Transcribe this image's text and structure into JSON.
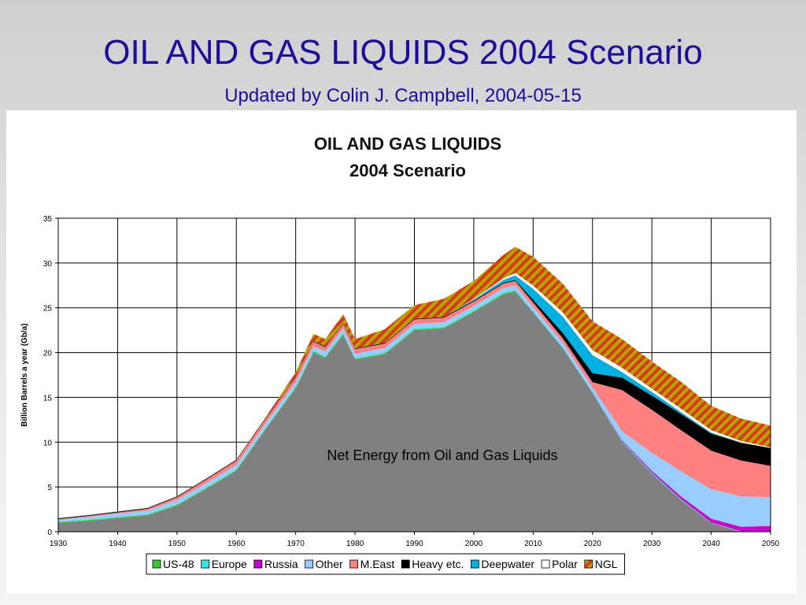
{
  "slide": {
    "title": "OIL AND GAS LIQUIDS 2004 Scenario",
    "subtitle": "Updated by Colin J. Campbell, 2004-05-15"
  },
  "chart_data": {
    "type": "area",
    "stacked": true,
    "title_lines": [
      "OIL AND GAS LIQUIDS",
      "2004 Scenario"
    ],
    "xlabel": "",
    "ylabel": "Billion Barrels a year (Gb/a)",
    "xlim": [
      1930,
      2050
    ],
    "ylim": [
      0,
      35
    ],
    "x_ticks": [
      "1930",
      "1940",
      "1950",
      "1960",
      "1970",
      "1980",
      "1990",
      "2000",
      "2010",
      "2020",
      "2030",
      "2040",
      "2050"
    ],
    "y_ticks": [
      "0",
      "5",
      "10",
      "15",
      "20",
      "25",
      "30",
      "35"
    ],
    "grid": true,
    "legend_position": "bottom",
    "annotation": "Net Energy from Oil and Gas Liquids",
    "x": [
      1930,
      1935,
      1940,
      1945,
      1950,
      1955,
      1960,
      1965,
      1970,
      1973,
      1975,
      1978,
      1980,
      1985,
      1990,
      1995,
      2000,
      2005,
      2007,
      2010,
      2015,
      2020,
      2025,
      2030,
      2035,
      2040,
      2045,
      2050
    ],
    "series": [
      {
        "name": "Net Energy",
        "color": "#808080",
        "pattern": "solid",
        "values": [
          1.0,
          1.2,
          1.5,
          1.8,
          2.9,
          4.8,
          6.8,
          11.5,
          16.0,
          20.0,
          19.4,
          22.0,
          19.2,
          19.8,
          22.5,
          22.7,
          24.5,
          26.5,
          26.8,
          24.5,
          20.5,
          15.5,
          10.0,
          6.5,
          3.5,
          1.0,
          0.0,
          0.0
        ]
      },
      {
        "name": "US-48",
        "color": "#33cc33",
        "pattern": "solid",
        "values": [
          0.1,
          0.1,
          0.1,
          0.1,
          0.1,
          0.1,
          0.1,
          0.1,
          0.1,
          0.1,
          0.1,
          0.1,
          0.1,
          0.1,
          0.1,
          0.1,
          0.1,
          0.1,
          0.1,
          0,
          0,
          0,
          0,
          0,
          0,
          0,
          0,
          0
        ]
      },
      {
        "name": "Europe",
        "color": "#33e6e6",
        "pattern": "solid",
        "values": [
          0.05,
          0.05,
          0.05,
          0.05,
          0.05,
          0.05,
          0.05,
          0.05,
          0.1,
          0.1,
          0.1,
          0.1,
          0.1,
          0.1,
          0.1,
          0.1,
          0.1,
          0.1,
          0.1,
          0.1,
          0.1,
          0.1,
          0.1,
          0.1,
          0.1,
          0.05,
          0.05,
          0.05
        ]
      },
      {
        "name": "Russia",
        "color": "#cc00cc",
        "pattern": "solid",
        "values": [
          0,
          0,
          0,
          0,
          0,
          0,
          0,
          0,
          0,
          0,
          0,
          0,
          0,
          0,
          0,
          0,
          0,
          0,
          0,
          0,
          0,
          0,
          0.1,
          0.2,
          0.3,
          0.4,
          0.5,
          0.6
        ]
      },
      {
        "name": "Other",
        "color": "#99ccff",
        "pattern": "solid",
        "values": [
          0.2,
          0.3,
          0.4,
          0.4,
          0.5,
          0.5,
          0.5,
          0.5,
          0.5,
          0.5,
          0.5,
          0.5,
          0.5,
          0.5,
          0.5,
          0.5,
          0.5,
          0.5,
          0.5,
          0.5,
          0.5,
          0.5,
          1.0,
          2.0,
          2.8,
          3.3,
          3.4,
          3.2
        ]
      },
      {
        "name": "M.East",
        "color": "#ff8080",
        "pattern": "solid",
        "values": [
          0.05,
          0.1,
          0.1,
          0.2,
          0.3,
          0.4,
          0.5,
          0.5,
          0.5,
          0.5,
          0.5,
          0.5,
          0.5,
          0.5,
          0.5,
          0.5,
          0.5,
          0.5,
          0.5,
          0.5,
          0.5,
          0.6,
          4.6,
          4.8,
          4.6,
          4.3,
          4.0,
          3.5
        ]
      },
      {
        "name": "Heavy etc.",
        "color": "#000000",
        "pattern": "solid",
        "values": [
          0.1,
          0.1,
          0.1,
          0.1,
          0.1,
          0.1,
          0.1,
          0.1,
          0.1,
          0.1,
          0.1,
          0.1,
          0.1,
          0.1,
          0.1,
          0.1,
          0.1,
          0.1,
          0.1,
          0.3,
          0.6,
          1.0,
          1.4,
          1.6,
          1.8,
          1.9,
          2.0,
          2.0
        ]
      },
      {
        "name": "Deepwater",
        "color": "#00b0e0",
        "pattern": "solid",
        "values": [
          0,
          0,
          0,
          0,
          0,
          0,
          0,
          0,
          0,
          0,
          0,
          0,
          0,
          0,
          0,
          0,
          0.1,
          0.3,
          0.5,
          1.2,
          1.8,
          2.0,
          0.6,
          0.4,
          0.2,
          0.1,
          0,
          0
        ]
      },
      {
        "name": "Polar",
        "color": "#ffffff",
        "pattern": "solid",
        "values": [
          0,
          0,
          0,
          0,
          0,
          0,
          0,
          0,
          0,
          0,
          0,
          0,
          0,
          0,
          0,
          0,
          0.1,
          0.2,
          0.3,
          0.4,
          0.5,
          0.6,
          0.5,
          0.4,
          0.4,
          0.3,
          0.2,
          0.1
        ]
      },
      {
        "name": "NGL",
        "color": "#d07000",
        "pattern": "hatch",
        "values": [
          0,
          0,
          0,
          0,
          0,
          0,
          0,
          0.1,
          0.5,
          0.8,
          0.8,
          1.0,
          1.0,
          1.5,
          1.5,
          2.0,
          2.0,
          2.6,
          2.9,
          3.2,
          3.2,
          3.2,
          3.2,
          3.0,
          3.0,
          2.7,
          2.5,
          2.4
        ]
      }
    ]
  }
}
